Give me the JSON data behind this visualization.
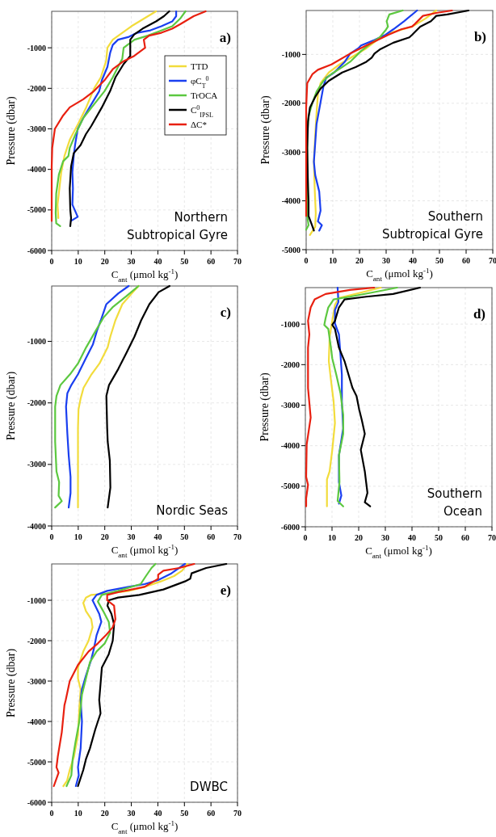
{
  "chart_data": [
    {
      "type": "line",
      "xlabel": "C$_{ant}$ (μmol kg$^{-1}$)",
      "ylabel": "Pressure (dbar)",
      "xlim": [
        0,
        70
      ],
      "xticks": [
        0,
        10,
        20,
        30,
        40,
        50,
        60,
        70
      ],
      "ylim": [
        -6000,
        -100
      ],
      "yticks": [
        -6000,
        -5000,
        -4000,
        -3000,
        -2000,
        -1000
      ],
      "grid": true,
      "legend": "right",
      "annotations": [
        "a)",
        "Northern\nSubtropical Gyre"
      ],
      "series": [
        {
          "name": "TTD",
          "color": "#f2dc3c",
          "x": [
            39.3,
            30,
            23,
            21,
            20.5,
            18.5,
            16,
            13,
            10,
            6.8,
            4.8,
            3.6,
            2.9,
            2.2,
            2.5
          ],
          "values": [
            -100,
            -470,
            -800,
            -1000,
            -1330,
            -1730,
            -2000,
            -2470,
            -2870,
            -3270,
            -3670,
            -4070,
            -4470,
            -4870,
            -5200
          ]
        },
        {
          "name": "φC$_{T}$$^{0}$",
          "color": "#1a3ff0",
          "x": [
            46.9,
            46.9,
            45.4,
            41.3,
            37.2,
            32.2,
            29.1,
            25,
            23,
            22,
            21,
            18.9,
            17.9,
            14.9,
            11.9,
            9.8,
            8.8,
            8.3,
            7.8,
            8,
            7.8,
            9.8,
            7.3
          ],
          "values": [
            -100,
            -220,
            -350,
            -470,
            -570,
            -630,
            -730,
            -800,
            -930,
            -1130,
            -1470,
            -1800,
            -2070,
            -2400,
            -2730,
            -3000,
            -3400,
            -3670,
            -4070,
            -4470,
            -4870,
            -5170,
            -5270
          ]
        },
        {
          "name": "TrOCA",
          "color": "#5cc840",
          "x": [
            50.4,
            48.4,
            45.4,
            40.3,
            36.2,
            31.2,
            27.1,
            26.6,
            25,
            23,
            19.9,
            15.9,
            11.9,
            9,
            6.8,
            6.3,
            4.3,
            2.7,
            1.7,
            1.5,
            1.7,
            3.2
          ],
          "values": [
            -100,
            -280,
            -470,
            -600,
            -700,
            -800,
            -1000,
            -1270,
            -1470,
            -1730,
            -2070,
            -2400,
            -2730,
            -3130,
            -3470,
            -3670,
            -3800,
            -4130,
            -4600,
            -5070,
            -5330,
            -5400
          ]
        },
        {
          "name": "C$^{0}$$_{IPSL}$",
          "color": "#000000",
          "x": [
            44.3,
            42.3,
            39.3,
            34.2,
            31.1,
            29.6,
            29.6,
            27.1,
            24,
            22,
            18.9,
            14.9,
            12.9,
            10.9,
            8.3,
            7.3,
            6.8,
            7,
            7.3,
            7
          ],
          "values": [
            -100,
            -220,
            -350,
            -530,
            -670,
            -800,
            -1200,
            -1400,
            -1730,
            -2070,
            -2470,
            -2930,
            -3130,
            -3400,
            -3600,
            -3930,
            -4470,
            -5000,
            -5200,
            -5400
          ]
        },
        {
          "name": "ΔC*",
          "color": "#e82010",
          "x": [
            58,
            53.5,
            48.4,
            45.4,
            41.3,
            36.7,
            34.7,
            35.2,
            31.1,
            27.1,
            23,
            19.9,
            15.9,
            11.9,
            6.8,
            4.3,
            1.2,
            0.2,
            0,
            0
          ],
          "values": [
            -100,
            -220,
            -420,
            -530,
            -630,
            -700,
            -800,
            -1000,
            -1200,
            -1330,
            -1530,
            -1800,
            -2070,
            -2270,
            -2470,
            -2670,
            -3000,
            -3470,
            -3930,
            -5270
          ]
        }
      ]
    },
    {
      "type": "line",
      "xlabel": "C$_{ant}$ (μmol kg$^{-1}$)",
      "ylabel": "Pressure (dbar)",
      "xlim": [
        0,
        70
      ],
      "xticks": [
        0,
        10,
        20,
        30,
        40,
        50,
        60,
        70
      ],
      "ylim": [
        -5000,
        -100
      ],
      "yticks": [
        -5000,
        -4000,
        -3000,
        -2000,
        -1000
      ],
      "grid": true,
      "annotations": [
        "b)",
        "Southern\nSubtropical Gyre"
      ],
      "series": [
        {
          "color": "#f2dc3c",
          "x": [
            48.8,
            44.8,
            39.7,
            32.7,
            26.6,
            22.6,
            17.6,
            12.5,
            8.5,
            5.4,
            4.4,
            3.9,
            3.4,
            2.9,
            3.2,
            3.6,
            3.4,
            1.4
          ],
          "values": [
            -100,
            -263,
            -430,
            -540,
            -706,
            -873,
            -1040,
            -1205,
            -1370,
            -1590,
            -1815,
            -2200,
            -2645,
            -3200,
            -3750,
            -4250,
            -4530,
            -4700
          ]
        },
        {
          "color": "#1a3ff0",
          "x": [
            41.6,
            36.7,
            32.7,
            29.7,
            25.6,
            20.6,
            19.6,
            16.5,
            14.5,
            10.5,
            7.5,
            6.5,
            5.4,
            3.9,
            2.9,
            3.4,
            4.9,
            5.4,
            4.4,
            5.9,
            4.9
          ],
          "values": [
            -100,
            -320,
            -485,
            -600,
            -706,
            -817,
            -873,
            -983,
            -1150,
            -1370,
            -1480,
            -1650,
            -1980,
            -2425,
            -3200,
            -3475,
            -3810,
            -4200,
            -4420,
            -4500,
            -4610
          ]
        },
        {
          "color": "#5cc840",
          "x": [
            36.2,
            31.2,
            30.2,
            30.7,
            29.7,
            27.6,
            24.6,
            20.6,
            18.6,
            16.5,
            13.5,
            9.5,
            6.5,
            3.9,
            2.4,
            0.9,
            0.4,
            0.4,
            0.7,
            0.4,
            0.9,
            0
          ],
          "values": [
            -100,
            -180,
            -320,
            -430,
            -510,
            -650,
            -760,
            -930,
            -1040,
            -1150,
            -1260,
            -1400,
            -1540,
            -1760,
            -1980,
            -2260,
            -2645,
            -3200,
            -3750,
            -4310,
            -4500,
            -4590
          ]
        },
        {
          "color": "#000000",
          "x": [
            60.9,
            52.9,
            48.8,
            46.8,
            42.8,
            39.7,
            38.7,
            32.7,
            27.6,
            25.6,
            24.6,
            22.6,
            18.6,
            13.5,
            8.5,
            5.4,
            3.4,
            1.4,
            0.7,
            0.4,
            0.7,
            0.9,
            0.9,
            2.4,
            2.9
          ],
          "values": [
            -100,
            -180,
            -210,
            -320,
            -430,
            -600,
            -650,
            -760,
            -900,
            -983,
            -1065,
            -1150,
            -1260,
            -1370,
            -1540,
            -1700,
            -1870,
            -2090,
            -2370,
            -2920,
            -3750,
            -4000,
            -4310,
            -4530,
            -4610
          ]
        },
        {
          "color": "#e82010",
          "x": [
            54.7,
            48.8,
            43.8,
            40.8,
            39.7,
            35.7,
            30.7,
            22.6,
            16.5,
            9.5,
            4.4,
            2.4,
            0.4,
            0,
            0,
            0
          ],
          "values": [
            -100,
            -150,
            -210,
            -375,
            -430,
            -485,
            -600,
            -817,
            -983,
            -1205,
            -1315,
            -1400,
            -1590,
            -2090,
            -4200,
            -4310
          ]
        }
      ]
    },
    {
      "type": "line",
      "xlabel": "C$_{ant}$ (μmol kg$^{-1}$)",
      "ylabel": "Pressure (dbar)",
      "xlim": [
        0,
        70
      ],
      "xticks": [
        0,
        10,
        20,
        30,
        40,
        50,
        60,
        70
      ],
      "ylim": [
        -4000,
        -100
      ],
      "yticks": [
        -4000,
        -3000,
        -2000,
        -1000
      ],
      "grid": true,
      "annotations": [
        "c)",
        "Nordic Seas"
      ],
      "series": [
        {
          "color": "#f2dc3c",
          "x": [
            32.7,
            30.2,
            26.6,
            24,
            22.1,
            21.1,
            18,
            15,
            12,
            10.9,
            10.1,
            9.9,
            9.9
          ],
          "values": [
            -100,
            -220,
            -395,
            -658,
            -921,
            -1096,
            -1360,
            -1535,
            -1754,
            -1930,
            -2105,
            -2412,
            -3700
          ]
        },
        {
          "color": "#1a3ff0",
          "x": [
            29,
            25.1,
            20.6,
            18.5,
            17,
            15.5,
            12.9,
            9.9,
            7.4,
            5.9,
            5.4,
            5.9,
            6.4,
            7.1,
            7.1,
            6.4
          ],
          "values": [
            -100,
            -220,
            -395,
            -658,
            -833,
            -1053,
            -1272,
            -1535,
            -1710,
            -1842,
            -2061,
            -2500,
            -2851,
            -3202,
            -3465,
            -3700
          ]
        },
        {
          "color": "#5cc840",
          "x": [
            32.7,
            28.2,
            23.1,
            19.5,
            16.5,
            13,
            9.9,
            6.9,
            3.3,
            1.8,
            1.3,
            1.3,
            1.8,
            2.8,
            2.6,
            3.8,
            1.3
          ],
          "values": [
            -100,
            -263,
            -439,
            -614,
            -833,
            -1096,
            -1360,
            -1535,
            -1710,
            -1886,
            -2061,
            -2631,
            -3114,
            -3289,
            -3509,
            -3597,
            -3700
          ]
        },
        {
          "color": "#000000",
          "x": [
            44.4,
            40.3,
            36.8,
            33.7,
            31.2,
            28.2,
            25.1,
            21.6,
            20.6,
            20.9,
            21.1,
            21.9,
            22.1,
            21.1
          ],
          "values": [
            -100,
            -200,
            -395,
            -658,
            -921,
            -1184,
            -1447,
            -1710,
            -1886,
            -2412,
            -2631,
            -2939,
            -3377,
            -3700
          ]
        }
      ]
    },
    {
      "type": "line",
      "xlabel": "C$_{ant}$ (μmol kg$^{-1}$)",
      "ylabel": "Pressure (dbar)",
      "xlim": [
        0,
        70
      ],
      "xticks": [
        0,
        10,
        20,
        30,
        40,
        50,
        60,
        70
      ],
      "ylim": [
        -6000,
        -100
      ],
      "yticks": [
        -6000,
        -5000,
        -4000,
        -3000,
        -2000,
        -1000
      ],
      "grid": true,
      "annotations": [
        "d)",
        "Southern\nOcean"
      ],
      "series": [
        {
          "color": "#f2dc3c",
          "x": [
            28.3,
            20.7,
            12.6,
            11.1,
            10.1,
            9.1,
            8.8,
            9.6,
            10.6,
            11.1,
            10.1,
            9.1,
            8.1,
            8.1
          ],
          "values": [
            -100,
            -224,
            -357,
            -523,
            -920,
            -1318,
            -1915,
            -2379,
            -2910,
            -3440,
            -4103,
            -4634,
            -4833,
            -5496
          ]
        },
        {
          "color": "#1a3ff0",
          "x": [
            12.1,
            12.4,
            11.1,
            11.1,
            12.6,
            13.2,
            13.7,
            13.7,
            14.2,
            12.6,
            12.6,
            13.5,
            12.6
          ],
          "values": [
            -100,
            -456,
            -655,
            -987,
            -1252,
            -1782,
            -2247,
            -2910,
            -3573,
            -4236,
            -4899,
            -5231,
            -5430
          ]
        },
        {
          "color": "#5cc840",
          "x": [
            34.4,
            24.8,
            16.7,
            10.6,
            8.6,
            7.6,
            7.1,
            8.6,
            9.6,
            10.1,
            11.6,
            13.2,
            14.2,
            14.2,
            12.6,
            12.8,
            12.1,
            14.2
          ],
          "values": [
            -100,
            -224,
            -324,
            -390,
            -589,
            -854,
            -1020,
            -1119,
            -1583,
            -1849,
            -2247,
            -2711,
            -3241,
            -3706,
            -4236,
            -4899,
            -5363,
            -5496
          ]
        },
        {
          "color": "#000000",
          "x": [
            43,
            32.9,
            22.8,
            14.7,
            12.6,
            11.1,
            10.1,
            11.1,
            12.6,
            14.7,
            16.2,
            17.7,
            19.2,
            20.2,
            21.2,
            22.3,
            20.8,
            22.3,
            22.8,
            23.3,
            22.3,
            24.3
          ],
          "values": [
            -100,
            -257,
            -324,
            -390,
            -589,
            -920,
            -1020,
            -1119,
            -1583,
            -1915,
            -2247,
            -2578,
            -2777,
            -3109,
            -3374,
            -3706,
            -4103,
            -4634,
            -4899,
            -5164,
            -5396,
            -5496
          ]
        },
        {
          "color": "#e82010",
          "x": [
            25.8,
            16.7,
            7.6,
            3.5,
            2,
            1,
            1.5,
            1,
            1,
            2,
            0.5,
            0.3,
            1,
            0.3,
            0.3
          ],
          "values": [
            -100,
            -158,
            -257,
            -390,
            -589,
            -920,
            -1252,
            -1583,
            -2578,
            -3308,
            -3971,
            -4767,
            -4966,
            -5297,
            -5496
          ]
        }
      ]
    },
    {
      "type": "line",
      "xlabel": "C$_{ant}$ (μmol kg$^{-1}$)",
      "ylabel": "Pressure (dbar)",
      "xlim": [
        0,
        70
      ],
      "xticks": [
        0,
        10,
        20,
        30,
        40,
        50,
        60,
        70
      ],
      "ylim": [
        -6000,
        -100
      ],
      "yticks": [
        -6000,
        -5000,
        -4000,
        -3000,
        -2000,
        -1000
      ],
      "grid": true,
      "annotations": [
        "e)",
        "DWBC"
      ],
      "series": [
        {
          "color": "#f2dc3c",
          "x": [
            51.2,
            49.1,
            46.1,
            41.1,
            35,
            29,
            20.9,
            14.9,
            12.9,
            11.9,
            12.9,
            14.9,
            15.4,
            13.9,
            11.9,
            9.9,
            9.9,
            10.9,
            10.4,
            9.9,
            8.4,
            6.8,
            5.8,
            4.4
          ],
          "values": [
            -100,
            -267,
            -400,
            -533,
            -667,
            -767,
            -833,
            -867,
            -933,
            -1067,
            -1267,
            -1467,
            -1667,
            -2000,
            -2267,
            -2667,
            -2933,
            -3200,
            -3667,
            -4333,
            -4867,
            -5200,
            -5467,
            -5600
          ]
        },
        {
          "color": "#1a3ff0",
          "x": [
            50.2,
            45.1,
            40.1,
            35,
            29,
            20.9,
            16.9,
            15.4,
            17.9,
            18.7,
            16.9,
            15.9,
            14.9,
            12.9,
            11.4,
            10.9,
            11.4,
            10.9,
            9.9,
            10.2,
            9.1
          ],
          "values": [
            -100,
            -333,
            -500,
            -600,
            -667,
            -767,
            -867,
            -1000,
            -1333,
            -1533,
            -1867,
            -2200,
            -2467,
            -2867,
            -3200,
            -3467,
            -4000,
            -4667,
            -5133,
            -5333,
            -5600
          ]
        },
        {
          "color": "#5cc840",
          "x": [
            39.1,
            37.6,
            35.5,
            33.5,
            25,
            18.9,
            17.4,
            19.4,
            21.5,
            22,
            20,
            16.9,
            14.4,
            12.9,
            11.4,
            10.4,
            8.9,
            7.9,
            7.4,
            5.6
          ],
          "values": [
            -100,
            -200,
            -400,
            -600,
            -767,
            -867,
            -1033,
            -1267,
            -1533,
            -1800,
            -2067,
            -2267,
            -2533,
            -2933,
            -3333,
            -4000,
            -4533,
            -4933,
            -5333,
            -5600
          ]
        },
        {
          "color": "#000000",
          "x": [
            65.8,
            58.2,
            52.7,
            52.2,
            50.2,
            42.1,
            33,
            25,
            21.5,
            21,
            22.5,
            23.5,
            23,
            21.5,
            18.9,
            18.4,
            17.9,
            18.4,
            16.4,
            14.4,
            12.9,
            11.9,
            10.9,
            9.9
          ],
          "values": [
            -100,
            -200,
            -333,
            -467,
            -533,
            -733,
            -867,
            -933,
            -1000,
            -1133,
            -1333,
            -1600,
            -2000,
            -2333,
            -2667,
            -3067,
            -3467,
            -3800,
            -4200,
            -4667,
            -4933,
            -5200,
            -5400,
            -5600
          ]
        },
        {
          "color": "#e82010",
          "x": [
            53.7,
            48.1,
            42.1,
            40.1,
            40.1,
            35,
            25,
            20.9,
            20.9,
            23.5,
            24,
            23,
            20.4,
            17.4,
            13.9,
            9.9,
            6.8,
            5.3,
            4.8,
            3.8,
            2.3,
            1.8,
            2.6,
            0.8
          ],
          "values": [
            -100,
            -200,
            -267,
            -367,
            -467,
            -667,
            -800,
            -867,
            -1000,
            -1133,
            -1467,
            -1667,
            -1867,
            -2067,
            -2267,
            -2600,
            -3000,
            -3467,
            -3600,
            -4267,
            -4867,
            -5133,
            -5267,
            -5600
          ]
        }
      ]
    }
  ]
}
